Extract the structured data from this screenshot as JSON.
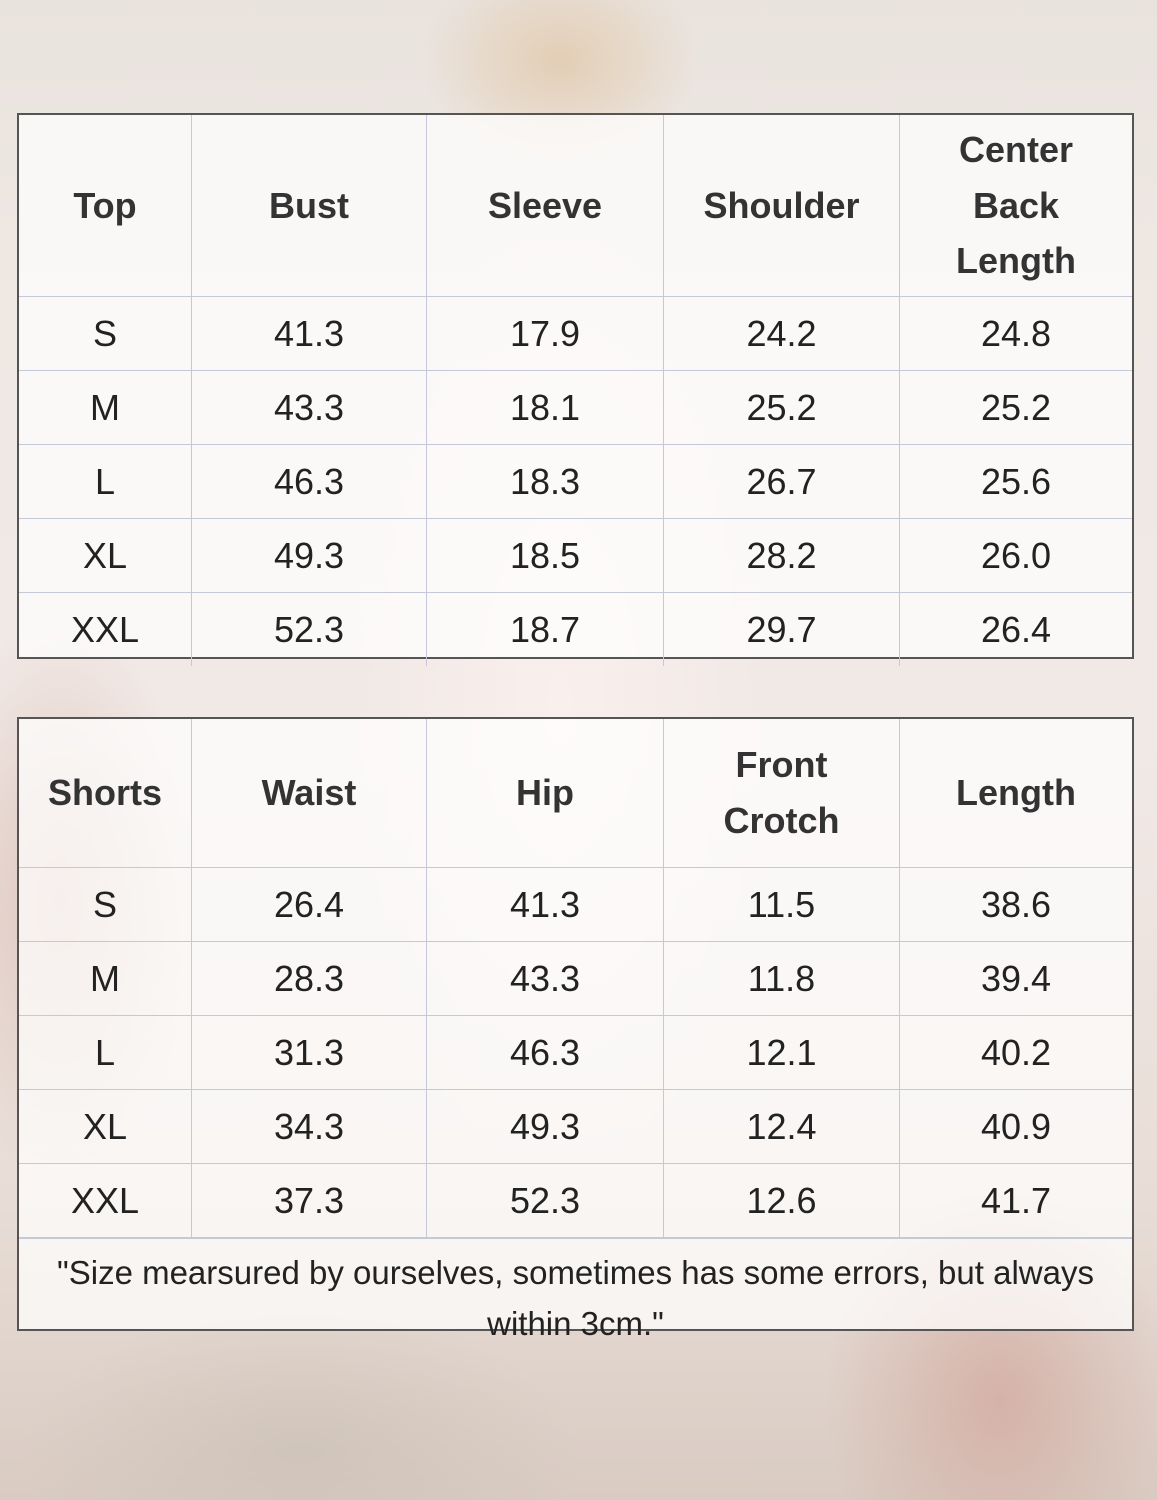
{
  "top_table": {
    "headers": [
      "Top",
      "Bust",
      "Sleeve",
      "Shoulder",
      "Center Back Length"
    ],
    "rows": [
      [
        "S",
        "41.3",
        "17.9",
        "24.2",
        "24.8"
      ],
      [
        "M",
        "43.3",
        "18.1",
        "25.2",
        "25.2"
      ],
      [
        "L",
        "46.3",
        "18.3",
        "26.7",
        "25.6"
      ],
      [
        "XL",
        "49.3",
        "18.5",
        "28.2",
        "26.0"
      ],
      [
        "XXL",
        "52.3",
        "18.7",
        "29.7",
        "26.4"
      ]
    ]
  },
  "shorts_table": {
    "headers": [
      "Shorts",
      "Waist",
      "Hip",
      "Front Crotch",
      "Length"
    ],
    "rows": [
      [
        "S",
        "26.4",
        "41.3",
        "11.5",
        "38.6"
      ],
      [
        "M",
        "28.3",
        "43.3",
        "11.8",
        "39.4"
      ],
      [
        "L",
        "31.3",
        "46.3",
        "12.1",
        "40.2"
      ],
      [
        "XL",
        "34.3",
        "49.3",
        "12.4",
        "40.9"
      ],
      [
        "XXL",
        "37.3",
        "52.3",
        "12.6",
        "41.7"
      ]
    ],
    "note": "\"Size mearsured by ourselves, sometimes has some errors, but always within 3cm.\""
  }
}
